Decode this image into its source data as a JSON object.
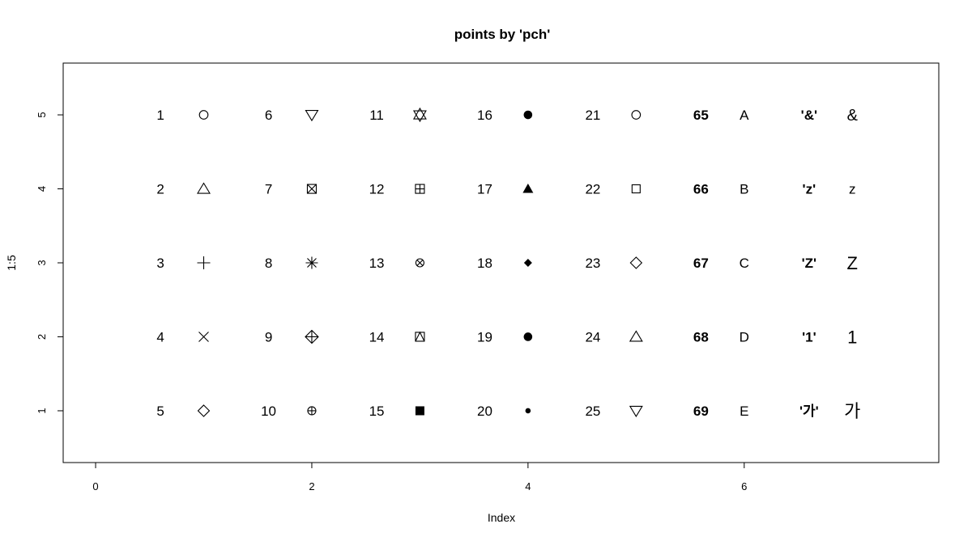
{
  "chart_data": {
    "type": "scatter",
    "title": "points by 'pch'",
    "xlabel": "Index",
    "ylabel": "1:5",
    "xlim": [
      -0.3,
      7.8
    ],
    "ylim": [
      0.3,
      5.7
    ],
    "x_ticks": [
      "0",
      "2",
      "4",
      "6"
    ],
    "x_tick_values": [
      0,
      2,
      4,
      6
    ],
    "y_ticks": [
      "1",
      "2",
      "3",
      "4",
      "5"
    ],
    "y_tick_values": [
      1,
      2,
      3,
      4,
      5
    ],
    "grid": false,
    "legend": "none",
    "symbol_color": "#000000",
    "columns": [
      {
        "label_x": 0.6,
        "symbol_x": 1,
        "entries": [
          {
            "label": "1",
            "y": 5,
            "pch": "open-circle"
          },
          {
            "label": "2",
            "y": 4,
            "pch": "open-triangle-up"
          },
          {
            "label": "3",
            "y": 3,
            "pch": "plus"
          },
          {
            "label": "4",
            "y": 2,
            "pch": "cross"
          },
          {
            "label": "5",
            "y": 1,
            "pch": "open-diamond"
          }
        ]
      },
      {
        "label_x": 1.6,
        "symbol_x": 2,
        "entries": [
          {
            "label": "6",
            "y": 5,
            "pch": "open-triangle-down"
          },
          {
            "label": "7",
            "y": 4,
            "pch": "square-cross"
          },
          {
            "label": "8",
            "y": 3,
            "pch": "asterisk"
          },
          {
            "label": "9",
            "y": 2,
            "pch": "diamond-plus"
          },
          {
            "label": "10",
            "y": 1,
            "pch": "circle-plus"
          }
        ]
      },
      {
        "label_x": 2.6,
        "symbol_x": 3,
        "entries": [
          {
            "label": "11",
            "y": 5,
            "pch": "star-of-david"
          },
          {
            "label": "12",
            "y": 4,
            "pch": "square-plus"
          },
          {
            "label": "13",
            "y": 3,
            "pch": "circle-cross"
          },
          {
            "label": "14",
            "y": 2,
            "pch": "square-triangle"
          },
          {
            "label": "15",
            "y": 1,
            "pch": "filled-square"
          }
        ]
      },
      {
        "label_x": 3.6,
        "symbol_x": 4,
        "entries": [
          {
            "label": "16",
            "y": 5,
            "pch": "filled-circle"
          },
          {
            "label": "17",
            "y": 4,
            "pch": "filled-triangle"
          },
          {
            "label": "18",
            "y": 3,
            "pch": "filled-diamond"
          },
          {
            "label": "19",
            "y": 2,
            "pch": "filled-circle"
          },
          {
            "label": "20",
            "y": 1,
            "pch": "small-filled-circle"
          }
        ]
      },
      {
        "label_x": 4.6,
        "symbol_x": 5,
        "entries": [
          {
            "label": "21",
            "y": 5,
            "pch": "open-circle"
          },
          {
            "label": "22",
            "y": 4,
            "pch": "open-square"
          },
          {
            "label": "23",
            "y": 3,
            "pch": "open-diamond"
          },
          {
            "label": "24",
            "y": 2,
            "pch": "open-triangle-up"
          },
          {
            "label": "25",
            "y": 1,
            "pch": "open-triangle-down"
          }
        ]
      },
      {
        "label_x": 5.6,
        "symbol_x": 6,
        "bold_labels": true,
        "entries": [
          {
            "label": "65",
            "y": 5,
            "char": "A"
          },
          {
            "label": "66",
            "y": 4,
            "char": "B"
          },
          {
            "label": "67",
            "y": 3,
            "char": "C"
          },
          {
            "label": "68",
            "y": 2,
            "char": "D"
          },
          {
            "label": "69",
            "y": 1,
            "char": "E"
          }
        ]
      },
      {
        "label_x": 6.6,
        "symbol_x": 7,
        "bold_labels": true,
        "entries": [
          {
            "label": "'&'",
            "y": 5,
            "char": "&"
          },
          {
            "label": "'z'",
            "y": 4,
            "char": "z"
          },
          {
            "label": "'Z'",
            "y": 3,
            "char": "Z"
          },
          {
            "label": "'1'",
            "y": 2,
            "char": "1"
          },
          {
            "label": "'가'",
            "y": 1,
            "char": "가"
          }
        ]
      }
    ]
  }
}
